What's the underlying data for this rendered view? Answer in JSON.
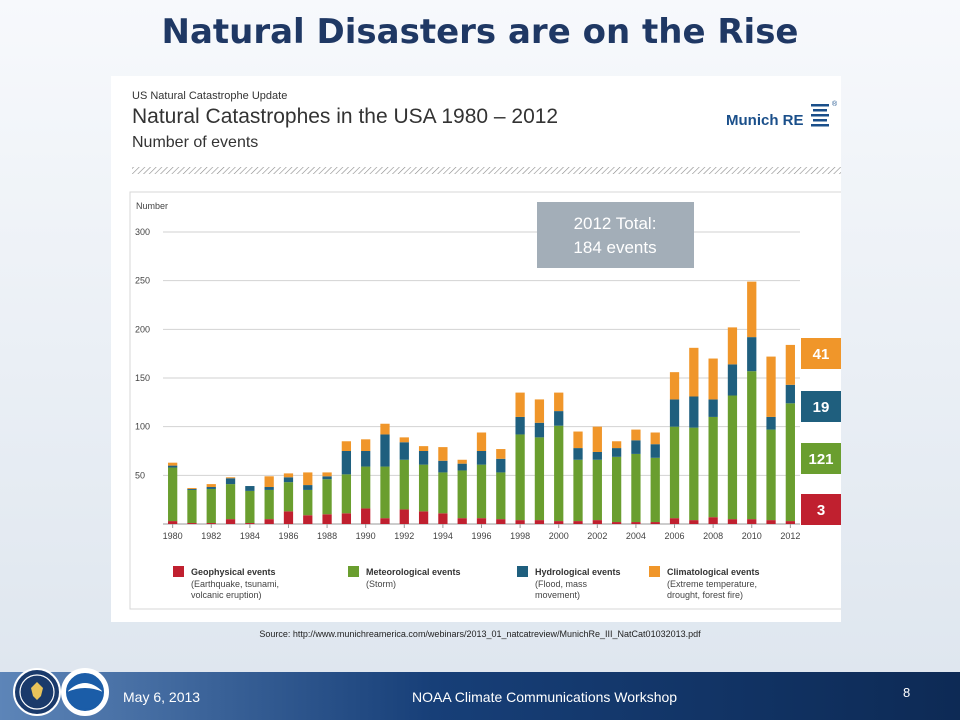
{
  "slide": {
    "title": "Natural Disasters are on the Rise",
    "source": "Source: http://www.munichreamerica.com/webinars/2013_01_natcatreview/MunichRe_III_NatCat01032013.pdf",
    "footer_date": "May 6, 2013",
    "footer_center": "NOAA Climate Communications Workshop",
    "page_number": "8"
  },
  "brand": {
    "name": "Munich RE",
    "registered": "®",
    "color": "#1a4f8a"
  },
  "colors": {
    "title": "#1f3864",
    "geophysical": "#c0202f",
    "meteorological": "#6a9e2f",
    "hydrological": "#1f5f7e",
    "climatological": "#f0962a",
    "footer": "#173f78"
  },
  "chart_data": {
    "type": "bar",
    "stacked": true,
    "kicker": "US Natural Catastrophe Update",
    "title": "Natural Catastrophes in the USA 1980 – 2012",
    "subtitle": "Number of events",
    "ylabel": "Number",
    "ylim": [
      0,
      300
    ],
    "yticks": [
      50,
      100,
      150,
      200,
      250,
      300
    ],
    "grid": true,
    "categories": [
      "1980",
      "1981",
      "1982",
      "1983",
      "1984",
      "1985",
      "1986",
      "1987",
      "1988",
      "1989",
      "1990",
      "1991",
      "1992",
      "1993",
      "1994",
      "1995",
      "1996",
      "1997",
      "1998",
      "1999",
      "2000",
      "2001",
      "2002",
      "2003",
      "2004",
      "2005",
      "2006",
      "2007",
      "2008",
      "2009",
      "2010",
      "2011",
      "2012"
    ],
    "xtick_labels": [
      "1980",
      "1982",
      "1984",
      "1986",
      "1988",
      "1990",
      "1992",
      "1994",
      "1996",
      "1998",
      "2000",
      "2002",
      "2004",
      "2006",
      "2008",
      "2010",
      "2012"
    ],
    "series": [
      {
        "name": "Geophysical events",
        "color": "#c0202f",
        "values": [
          3,
          1,
          1,
          5,
          1,
          5,
          13,
          9,
          10,
          11,
          16,
          6,
          15,
          13,
          11,
          6,
          6,
          5,
          4,
          4,
          3,
          3,
          4,
          2,
          2,
          2,
          6,
          4,
          7,
          5,
          5,
          4,
          3
        ]
      },
      {
        "name": "Meteorological events",
        "color": "#6a9e2f",
        "values": [
          55,
          34,
          35,
          36,
          33,
          30,
          30,
          26,
          36,
          40,
          43,
          53,
          51,
          48,
          42,
          49,
          55,
          48,
          88,
          85,
          98,
          63,
          62,
          67,
          70,
          66,
          94,
          95,
          103,
          127,
          152,
          93,
          121
        ]
      },
      {
        "name": "Hydrological events",
        "color": "#1f5f7e",
        "values": [
          2,
          1,
          2,
          6,
          5,
          3,
          5,
          5,
          3,
          24,
          16,
          33,
          18,
          14,
          12,
          7,
          14,
          14,
          18,
          15,
          15,
          12,
          8,
          9,
          14,
          14,
          28,
          32,
          18,
          32,
          35,
          13,
          19
        ]
      },
      {
        "name": "Climatological events",
        "color": "#f0962a",
        "values": [
          3,
          1,
          3,
          1,
          0,
          11,
          4,
          13,
          4,
          10,
          12,
          11,
          5,
          5,
          14,
          4,
          19,
          10,
          25,
          24,
          19,
          17,
          26,
          7,
          11,
          12,
          28,
          50,
          42,
          38,
          57,
          62,
          41
        ]
      }
    ],
    "legend": [
      {
        "label": "Geophysical events",
        "desc": [
          "(Earthquake, tsunami,",
          "volcanic eruption)"
        ]
      },
      {
        "label": "Meteorological events",
        "desc": [
          "(Storm)"
        ]
      },
      {
        "label": "Hydrological events",
        "desc": [
          "(Flood, mass",
          "movement)"
        ]
      },
      {
        "label": "Climatological events",
        "desc": [
          "(Extreme temperature,",
          "drought, forest fire)"
        ]
      }
    ],
    "legend_placement": "bottom",
    "total_box": [
      "2012 Total:",
      "184 events"
    ],
    "side_labels": [
      {
        "value": "41",
        "color": "#f0962a"
      },
      {
        "value": "19",
        "color": "#1f5f7e"
      },
      {
        "value": "121",
        "color": "#6a9e2f"
      },
      {
        "value": "3",
        "color": "#c0202f"
      }
    ]
  }
}
